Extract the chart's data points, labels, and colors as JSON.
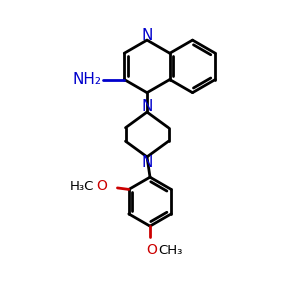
{
  "background": "#ffffff",
  "bond_color": "#000000",
  "n_color": "#0000cc",
  "o_color": "#cc0000",
  "c_color": "#000000",
  "line_width": 2.0,
  "figsize": [
    3.0,
    3.0
  ],
  "dpi": 100,
  "xlim": [
    0,
    10
  ],
  "ylim": [
    0,
    10
  ]
}
